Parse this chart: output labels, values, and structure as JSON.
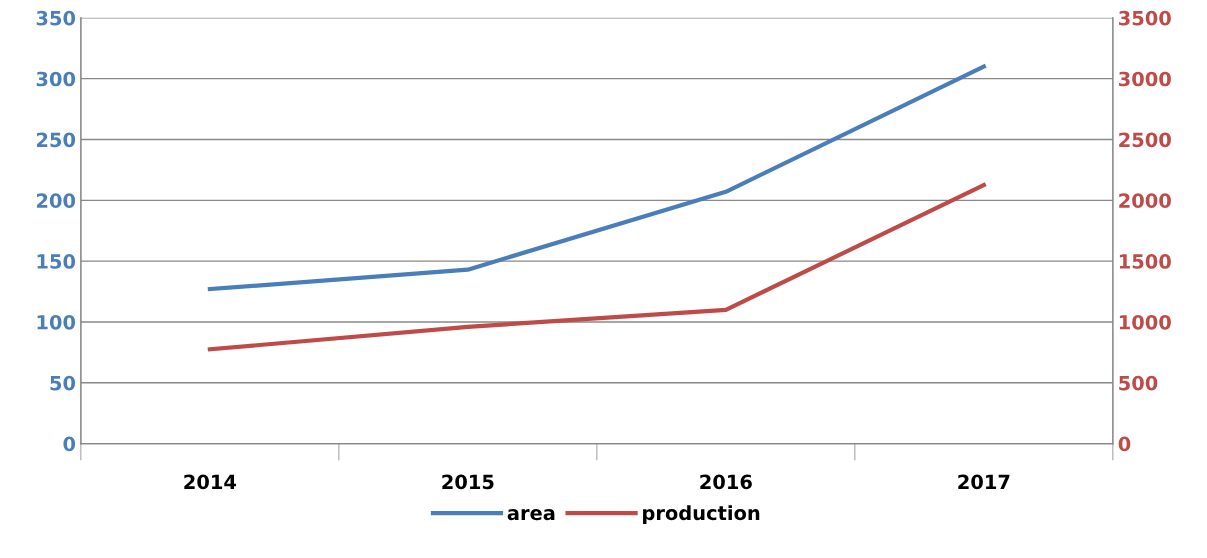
{
  "chart_data": {
    "type": "line",
    "categories": [
      "2014",
      "2015",
      "2016",
      "2017"
    ],
    "series": [
      {
        "name": "area",
        "color": "#4a7ebb",
        "values": [
          127,
          143,
          207,
          310
        ]
      },
      {
        "name": "production",
        "color": "#be4b48",
        "values": [
          775,
          960,
          1100,
          2125
        ],
        "axis": "y2"
      }
    ],
    "ylim": [
      0,
      350
    ],
    "yticks": [
      0,
      50,
      100,
      150,
      200,
      250,
      300,
      350
    ],
    "y2lim": [
      0,
      3500
    ],
    "y2ticks": [
      0,
      500,
      1000,
      1500,
      2000,
      2500,
      3000,
      3500
    ],
    "grid": "y",
    "legend": "bottom",
    "marker": "none",
    "line_style": "solid"
  }
}
